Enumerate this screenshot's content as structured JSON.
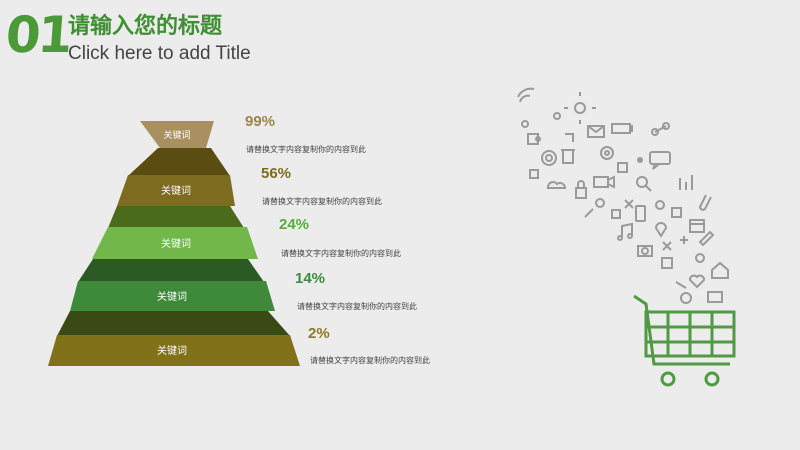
{
  "header": {
    "number": "01",
    "title_cn": "请输入您的标题",
    "title_en": "Click here to add Title"
  },
  "pyramid": {
    "levels": [
      {
        "label": "关键词",
        "percent": "99%",
        "desc": "请替换文字内容复制你的内容到此",
        "color": "#a89060",
        "pct_color": "#9a8646"
      },
      {
        "label": "关键词",
        "percent": "56%",
        "desc": "请替换文字内容复制你的内容到此",
        "color": "#7d6b1f",
        "pct_color": "#7d6b1f"
      },
      {
        "label": "关键词",
        "percent": "24%",
        "desc": "请替换文字内容复制你的内容到此",
        "color": "#72b74a",
        "pct_color": "#5aaa3c"
      },
      {
        "label": "关键词",
        "percent": "14%",
        "desc": "请替换文字内容复制你的内容到此",
        "color": "#3f8a3a",
        "pct_color": "#3f8a3a"
      },
      {
        "label": "关键词",
        "percent": "2%",
        "desc": "请替换文字内容复制你的内容到此",
        "color": "#817118",
        "pct_color": "#8a7a24"
      }
    ]
  },
  "decoration": {
    "icon_color": "#9a9a9a",
    "cart_color": "#4f9a43",
    "icons": [
      "wifi-icon",
      "sun-icon",
      "mail-icon",
      "puzzle-icon",
      "battery-icon",
      "chat-icon",
      "share-icon",
      "gear-icon",
      "at-icon",
      "trash-icon",
      "video-icon",
      "lock-icon",
      "cloud-icon",
      "search-icon",
      "chart-icon",
      "paperclip-icon",
      "phone-icon",
      "calendar-icon",
      "pin-icon",
      "music-icon",
      "camera-icon",
      "home-icon",
      "pencil-icon",
      "heart-icon"
    ]
  }
}
